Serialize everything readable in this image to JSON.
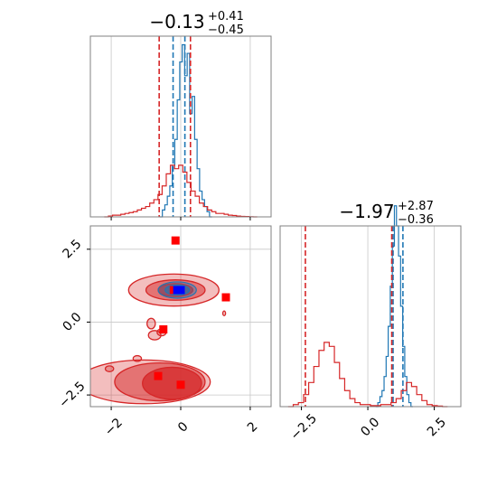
{
  "chart_data": {
    "type": "corner",
    "colors": {
      "hist1": "#1f77b4",
      "hist2": "#d62728",
      "point_red": "#ff0000",
      "point_blue": "#0000ff",
      "grid": "#c8c8c8",
      "frame": "#808080"
    },
    "panels": [
      {
        "id": "marginal-x",
        "type": "histogram",
        "title": {
          "value": "−0.13",
          "upper": "+0.41",
          "lower": "−0.45"
        },
        "xlim": [
          -2.6,
          2.6
        ],
        "xticks": [
          -2,
          0,
          2
        ],
        "grid": true,
        "show_tick_labels": false,
        "series": [
          {
            "color": "#1f77b4",
            "median": -0.13,
            "low": -0.58,
            "high": 0.28,
            "quantiles": [
              -0.22,
              0.12
            ],
            "edges": [
              -0.6,
              0.9
            ],
            "values": [
              0,
              0.04,
              0.07,
              0.12,
              0.18,
              0.3,
              0.45,
              0.68,
              0.9,
              1.0,
              0.82,
              0.95,
              0.6,
              0.7,
              0.45,
              0.28,
              0.15,
              0.1,
              0.06,
              0.03,
              0
            ]
          },
          {
            "color": "#d62728",
            "median": -0.13,
            "low": -0.58,
            "high": 0.28,
            "quantiles": [
              -0.62,
              0.28
            ],
            "edges": [
              -2.2,
              2.2
            ],
            "values": [
              0,
              0.005,
              0.01,
              0.01,
              0.015,
              0.02,
              0.025,
              0.03,
              0.04,
              0.05,
              0.06,
              0.08,
              0.1,
              0.13,
              0.18,
              0.25,
              0.3,
              0.28,
              0.3,
              0.26,
              0.2,
              0.15,
              0.12,
              0.08,
              0.06,
              0.04,
              0.03,
              0.02,
              0.02,
              0.015,
              0.01,
              0.008,
              0.005,
              0.003,
              0.002,
              0.001,
              0
            ]
          }
        ],
        "ymax": 1.05
      },
      {
        "id": "marginal-y",
        "type": "histogram",
        "title": {
          "value": "−1.97",
          "upper": "+2.87",
          "lower": "−0.36"
        },
        "xlim": [
          -3.3,
          3.5
        ],
        "xticks": [
          -2.5,
          0.0,
          2.5
        ],
        "xtick_labels": [
          "−2.5",
          "0.0",
          "2.5"
        ],
        "grid": true,
        "series": [
          {
            "color": "#1f77b4",
            "quantiles": [
              0.95,
              1.32
            ],
            "edges": [
              0.3,
              1.7
            ],
            "values": [
              0,
              0.02,
              0.05,
              0.08,
              0.15,
              0.25,
              0.4,
              0.6,
              0.8,
              1.0,
              0.9,
              0.75,
              0.5,
              0.3,
              0.15,
              0.06,
              0.02,
              0
            ]
          },
          {
            "color": "#d62728",
            "quantiles": [
              -2.35,
              0.9
            ],
            "edges": [
              -3.0,
              3.0
            ],
            "values": [
              0,
              0.01,
              0.02,
              0.06,
              0.12,
              0.2,
              0.28,
              0.32,
              0.3,
              0.22,
              0.14,
              0.08,
              0.04,
              0.02,
              0.01,
              0.01,
              0.005,
              0.005,
              0.01,
              0.01,
              0.02,
              0.04,
              0.08,
              0.12,
              0.1,
              0.06,
              0.03,
              0.01,
              0.005,
              0.003,
              0
            ]
          }
        ],
        "ymax": 0.9
      },
      {
        "id": "joint",
        "type": "contour",
        "xlim": [
          -2.6,
          2.6
        ],
        "ylim": [
          -2.9,
          3.3
        ],
        "xticks": [
          -2,
          0,
          2
        ],
        "xtick_labels": [
          "−2",
          "0",
          "2"
        ],
        "yticks": [
          -2.5,
          0.0,
          2.5
        ],
        "ytick_labels": [
          "−2.5",
          "0.0",
          "2.5"
        ],
        "grid": true,
        "red_contours": [
          {
            "cx": -1.05,
            "cy": -2.05,
            "rx": 1.9,
            "ry": 0.75,
            "level": 1
          },
          {
            "cx": -0.6,
            "cy": -2.05,
            "rx": 1.3,
            "ry": 0.65,
            "level": 2
          },
          {
            "cx": -0.25,
            "cy": -2.1,
            "rx": 0.85,
            "ry": 0.55,
            "level": 3
          },
          {
            "cx": -0.2,
            "cy": 1.1,
            "rx": 1.3,
            "ry": 0.55,
            "level": 1
          },
          {
            "cx": -0.15,
            "cy": 1.1,
            "rx": 0.85,
            "ry": 0.35,
            "level": 2
          },
          {
            "cx": -0.15,
            "cy": 1.1,
            "rx": 0.5,
            "ry": 0.22,
            "level": 3
          },
          {
            "cx": -0.85,
            "cy": -0.05,
            "rx": 0.12,
            "ry": 0.18,
            "level": 1
          },
          {
            "cx": -0.75,
            "cy": -0.45,
            "rx": 0.18,
            "ry": 0.16,
            "level": 1
          },
          {
            "cx": -0.55,
            "cy": -0.35,
            "rx": 0.13,
            "ry": 0.12,
            "level": 1
          },
          {
            "cx": -1.25,
            "cy": -1.25,
            "rx": 0.12,
            "ry": 0.1,
            "level": 1
          },
          {
            "cx": -2.05,
            "cy": -1.6,
            "rx": 0.12,
            "ry": 0.1,
            "level": 1
          },
          {
            "cx": 1.25,
            "cy": 0.3,
            "rx": 0.04,
            "ry": 0.08,
            "level": 1
          }
        ],
        "blue_contours": [
          {
            "cx": -0.1,
            "cy": 1.1,
            "rx": 0.55,
            "ry": 0.28,
            "level": 1
          },
          {
            "cx": -0.1,
            "cy": 1.1,
            "rx": 0.35,
            "ry": 0.17,
            "level": 2
          },
          {
            "cx": -0.1,
            "cy": 1.1,
            "rx": 0.18,
            "ry": 0.09,
            "level": 3
          }
        ],
        "red_points": [
          {
            "x": -0.15,
            "y": 2.8
          },
          {
            "x": 1.3,
            "y": 0.85
          },
          {
            "x": -0.5,
            "y": -0.25
          },
          {
            "x": -0.65,
            "y": -1.85
          },
          {
            "x": 0.0,
            "y": -2.15
          },
          {
            "x": -0.2,
            "y": 1.1
          }
        ],
        "blue_points": [
          {
            "x": -0.1,
            "y": 1.1
          },
          {
            "x": 0.0,
            "y": 1.1
          }
        ]
      }
    ]
  }
}
